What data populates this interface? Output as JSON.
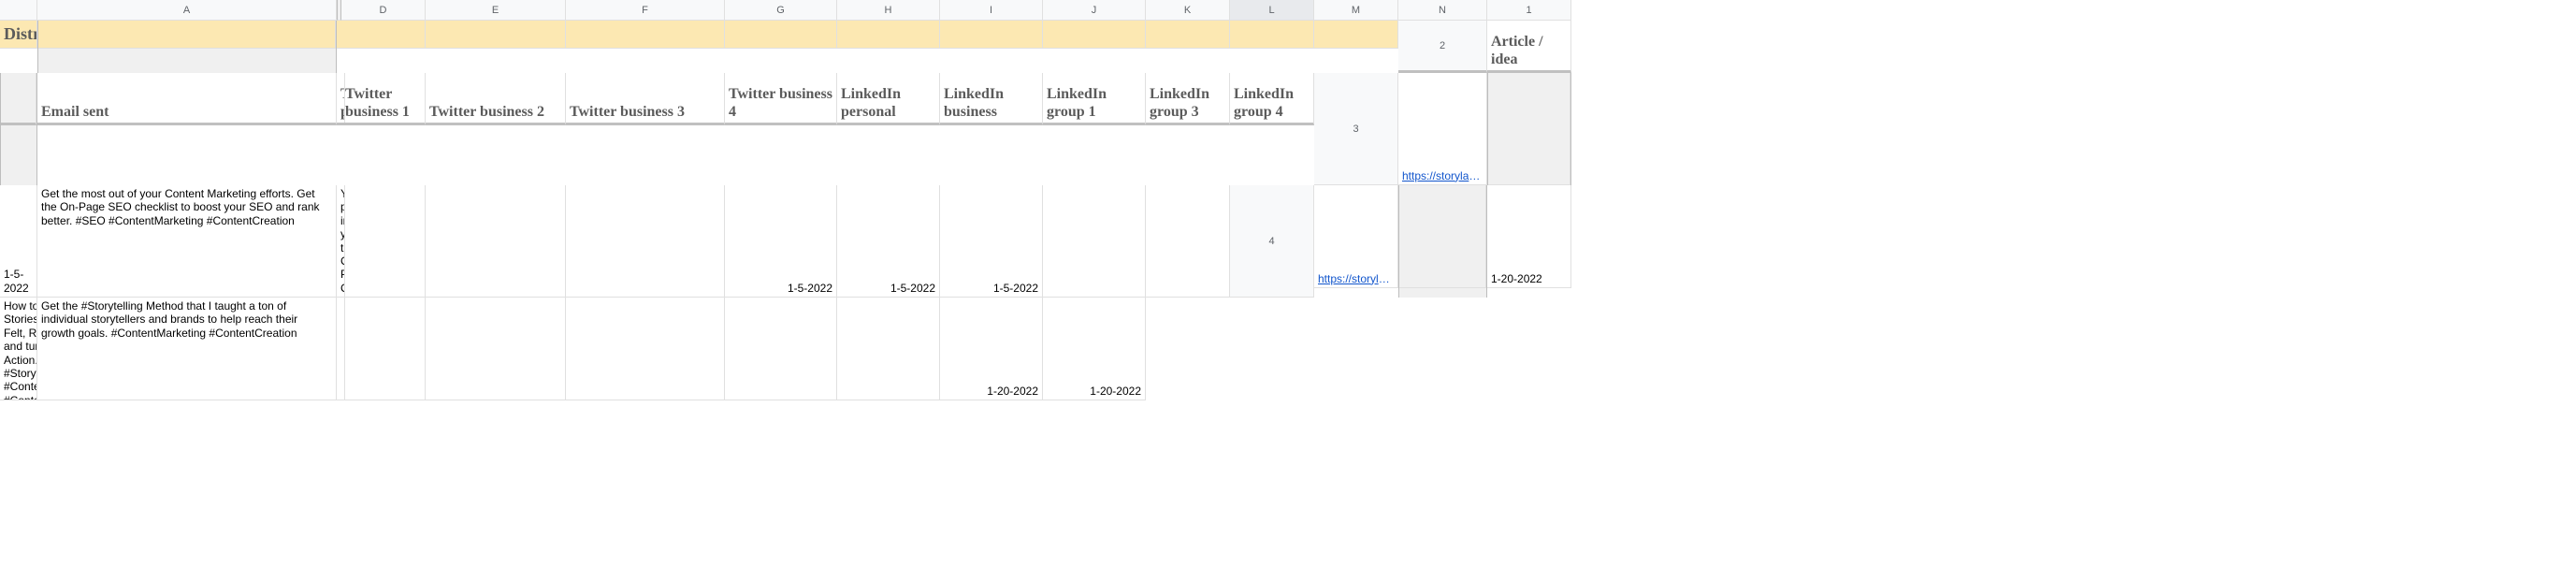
{
  "columns": {
    "letters": [
      "",
      "A",
      "",
      "D",
      "E",
      "F",
      "G",
      "H",
      "I",
      "J",
      "K",
      "L",
      "M",
      "N"
    ],
    "selected_index": 11
  },
  "row_numbers": [
    "1",
    "2",
    "3",
    "4"
  ],
  "title": "Content Distribution Framework",
  "headers": {
    "A": "Article / idea",
    "D": "Email sent",
    "E": "Twitter personal",
    "F": "Twitter business 1",
    "G": "Twitter business 2",
    "H": "Twitter business 3",
    "I": "Twitter business 4",
    "J": "LinkedIn personal",
    "K": "LinkedIn business",
    "L": "LinkedIn group 1",
    "M": "LinkedIn group 3",
    "N": "LinkedIn group 4"
  },
  "rows": [
    {
      "link_text": "https://storylab.ai/on-page-seo-checklist/",
      "link_href": "https://storylab.ai/on-page-seo-checklist/",
      "D": "1-5-2022",
      "E": "Get the most out of your Content Marketing efforts. Get the On-Page SEO checklist to boost your SEO and rank better. #SEO #ContentMarketing #ContentCreation",
      "F": "You're probably planning to invest in SEO but maybe you're not getting the ROI you want Check out this On-Page #SEO Checklist and don't miss out on organic traffic. #ContentMarketing #ContentCreation",
      "G": "",
      "H": "",
      "I": "",
      "J": "1-5-2022",
      "K": "1-5-2022",
      "L": "1-5-2022",
      "M": "",
      "N": ""
    },
    {
      "link_text": "https://storylab.ai/how-to-write-good-story/",
      "link_href": "https://storylab.ai/how-to-write-good-story/",
      "D": "1-20-2022",
      "E": "How to Write Stories that are Felt, Remembered and turned into Action. #Storytelling #ContentMarketing #ContentCreation",
      "F": "Get the #Storytelling Method that I taught a ton of individual storytellers and brands to help reach their growth goals. #ContentMarketing #ContentCreation",
      "G": "",
      "H": "",
      "I": "",
      "J": "",
      "K": "",
      "L": "",
      "M": "1-20-2022",
      "N": "1-20-2022"
    }
  ],
  "styling": {
    "title_bg": "#fce8b2",
    "header_font": "Georgia",
    "cell_font": "Arial",
    "link_color": "#1155cc",
    "grid_color": "#e0e0e0",
    "col_header_bg": "#f8f9fa",
    "title_fontsize": 18,
    "header_fontsize": 16,
    "cell_fontsize": 12
  }
}
